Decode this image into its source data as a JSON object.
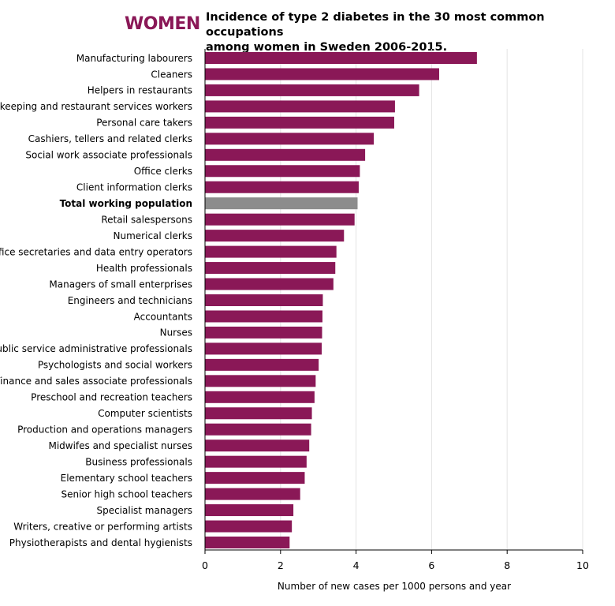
{
  "header": {
    "tag": "WOMEN",
    "title_line1": "Incidence of type 2 diabetes in the 30 most common occupations",
    "title_line2": "among women in Sweden 2006-2015."
  },
  "colors": {
    "bar": "#8a1857",
    "highlight_bar": "#8c8c8c",
    "tag": "#8a1857",
    "grid": "#e3e3e3",
    "axis": "#000000"
  },
  "chart_data": {
    "type": "bar",
    "orientation": "horizontal",
    "title": "Incidence of type 2 diabetes in the 30 most common occupations among women in Sweden 2006-2015.",
    "xlabel": "Number of new cases per 1000 persons and year",
    "ylabel": "",
    "xlim": [
      0,
      10
    ],
    "xticks": [
      0,
      2,
      4,
      6,
      8,
      10
    ],
    "grid": "vertical",
    "highlight_category": "Total working population",
    "categories": [
      "Manufacturing labourers",
      "Cleaners",
      "Helpers in restaurants",
      "Housekeeping and restaurant services workers",
      "Personal care takers",
      "Cashiers, tellers and related clerks",
      "Social work associate professionals",
      "Office clerks",
      "Client information clerks",
      "Total working population",
      "Retail salespersons",
      "Numerical clerks",
      "Office secretaries and data entry operators",
      "Health professionals",
      "Managers of small enterprises",
      "Engineers and technicians",
      "Accountants",
      "Nurses",
      "Public service administrative professionals",
      "Psychologists and social workers",
      "Finance and sales associate professionals",
      "Preschool and recreation teachers",
      "Computer scientists",
      "Production and operations managers",
      "Midwifes and specialist nurses",
      "Business professionals",
      "Elementary school teachers",
      "Senior high school teachers",
      "Specialist managers",
      "Writers, creative or performing artists",
      "Physiotherapists and dental hygienists"
    ],
    "values": [
      7.2,
      6.2,
      5.67,
      5.03,
      5.01,
      4.47,
      4.24,
      4.1,
      4.07,
      4.04,
      3.96,
      3.68,
      3.48,
      3.45,
      3.4,
      3.12,
      3.11,
      3.1,
      3.09,
      3.01,
      2.93,
      2.9,
      2.83,
      2.81,
      2.76,
      2.69,
      2.64,
      2.52,
      2.34,
      2.3,
      2.24
    ]
  }
}
